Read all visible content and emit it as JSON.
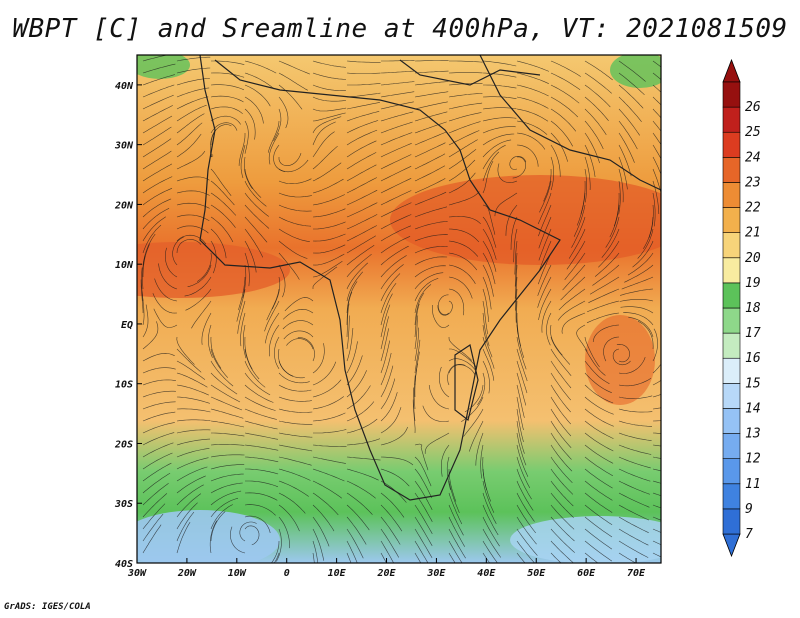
{
  "title": "WBPT [C] and Sreamline at 400hPa, VT: 2021081509",
  "footer": "GrADS: IGES/COLA",
  "map": {
    "lon_range": [
      -30,
      75
    ],
    "lat_range": [
      -40,
      45
    ],
    "lon_ticks": [
      {
        "value": -30,
        "label": "30W"
      },
      {
        "value": -20,
        "label": "20W"
      },
      {
        "value": -10,
        "label": "10W"
      },
      {
        "value": 0,
        "label": "0"
      },
      {
        "value": 10,
        "label": "10E"
      },
      {
        "value": 20,
        "label": "20E"
      },
      {
        "value": 30,
        "label": "30E"
      },
      {
        "value": 40,
        "label": "40E"
      },
      {
        "value": 50,
        "label": "50E"
      },
      {
        "value": 60,
        "label": "60E"
      },
      {
        "value": 70,
        "label": "70E"
      }
    ],
    "lat_ticks": [
      {
        "value": 40,
        "label": "40N"
      },
      {
        "value": 30,
        "label": "30N"
      },
      {
        "value": 20,
        "label": "20N"
      },
      {
        "value": 10,
        "label": "10N"
      },
      {
        "value": 0,
        "label": "EQ"
      },
      {
        "value": -10,
        "label": "10S"
      },
      {
        "value": -20,
        "label": "20S"
      },
      {
        "value": -30,
        "label": "30S"
      },
      {
        "value": -40,
        "label": "40S"
      }
    ]
  },
  "colorbar": {
    "levels": [
      "7",
      "9",
      "11",
      "12",
      "13",
      "14",
      "15",
      "16",
      "17",
      "18",
      "19",
      "20",
      "21",
      "22",
      "23",
      "24",
      "25",
      "26"
    ],
    "colors": [
      "#2f6fd6",
      "#3f82e0",
      "#5a98ea",
      "#76acf0",
      "#95c2f5",
      "#b7d8f8",
      "#dbeefa",
      "#c4ecc0",
      "#8ed88a",
      "#5cc25a",
      "#f8eca0",
      "#f7d47a",
      "#f2b04c",
      "#ed8c34",
      "#e66628",
      "#dc3c20",
      "#c0201c",
      "#96100f"
    ]
  }
}
